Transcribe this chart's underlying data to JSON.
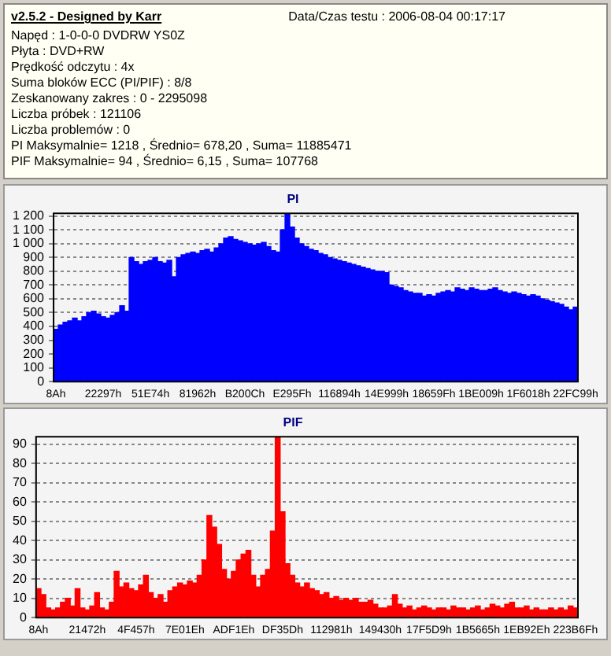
{
  "chart_data": [
    {
      "type": "other",
      "title": "v2.5.2 - Designed by Karr",
      "annotations": [
        "Data/Czas testu : 2006-08-04 00:17:17",
        "Napęd : 1-0-0-0 DVDRW YS0Z",
        "Płyta : DVD+RW",
        "Prędkość odczytu : 4x",
        "Suma bloków ECC (PI/PIF) : 8/8",
        "Zeskanowany zakres : 0 - 2295098",
        "Liczba próbek : 121106",
        "Liczba problemów : 0",
        "PI Maksymalnie= 1218 , Średnio= 678,20 , Suma= 11885471",
        "PIF Maksymalnie= 94 , Średnio= 6,15 , Suma= 107768"
      ]
    },
    {
      "type": "bar",
      "title": "PI",
      "color": "#0000ff",
      "grid": "y",
      "categories": [
        "8Ah",
        null,
        null,
        null,
        null,
        null,
        null,
        null,
        null,
        null,
        "22297h",
        null,
        null,
        null,
        null,
        null,
        null,
        null,
        null,
        null,
        "51E74h",
        null,
        null,
        null,
        null,
        null,
        null,
        null,
        null,
        null,
        "81962h",
        null,
        null,
        null,
        null,
        null,
        null,
        null,
        null,
        null,
        "B200Ch",
        null,
        null,
        null,
        null,
        null,
        null,
        null,
        null,
        null,
        "E295Fh",
        null,
        null,
        null,
        null,
        null,
        null,
        null,
        null,
        null,
        "116894h",
        null,
        null,
        null,
        null,
        null,
        null,
        null,
        null,
        null,
        "14E999h",
        null,
        null,
        null,
        null,
        null,
        null,
        null,
        null,
        null,
        "18659Fh",
        null,
        null,
        null,
        null,
        null,
        null,
        null,
        null,
        null,
        "1BE009h",
        null,
        null,
        null,
        null,
        null,
        null,
        null,
        null,
        null,
        "1F6018h",
        null,
        null,
        null,
        null,
        null,
        null,
        null,
        null,
        null,
        "22FC99h"
      ],
      "values": [
        380,
        410,
        430,
        440,
        460,
        440,
        470,
        500,
        510,
        490,
        470,
        460,
        480,
        500,
        550,
        510,
        900,
        870,
        850,
        870,
        880,
        900,
        870,
        860,
        880,
        760,
        900,
        920,
        930,
        940,
        930,
        950,
        960,
        940,
        970,
        1000,
        1040,
        1050,
        1030,
        1020,
        1010,
        1000,
        990,
        1000,
        1010,
        980,
        950,
        940,
        1100,
        1220,
        1120,
        1040,
        1000,
        980,
        960,
        950,
        930,
        920,
        900,
        890,
        880,
        870,
        860,
        850,
        840,
        830,
        820,
        810,
        800,
        800,
        790,
        700,
        690,
        680,
        660,
        650,
        640,
        640,
        620,
        630,
        620,
        640,
        650,
        660,
        650,
        680,
        670,
        660,
        680,
        670,
        660,
        660,
        670,
        680,
        660,
        650,
        640,
        650,
        640,
        630,
        620,
        630,
        620,
        600,
        590,
        580,
        570,
        560,
        540,
        520,
        540
      ],
      "ylim": [
        0,
        1220
      ],
      "yticks": [
        0,
        100,
        200,
        300,
        400,
        500,
        600,
        700,
        800,
        900,
        {
          "value": 1000,
          "label": "1 000"
        },
        {
          "value": 1100,
          "label": "1 100"
        },
        {
          "value": 1200,
          "label": "1 200"
        }
      ]
    },
    {
      "type": "bar",
      "title": "PIF",
      "color": "#ff0000",
      "grid": "y",
      "categories": [
        "8Ah",
        null,
        null,
        null,
        null,
        null,
        null,
        null,
        null,
        null,
        "21472h",
        null,
        null,
        null,
        null,
        null,
        null,
        null,
        null,
        null,
        "4F457h",
        null,
        null,
        null,
        null,
        null,
        null,
        null,
        null,
        null,
        "7E01Eh",
        null,
        null,
        null,
        null,
        null,
        null,
        null,
        null,
        null,
        "ADF1Eh",
        null,
        null,
        null,
        null,
        null,
        null,
        null,
        null,
        null,
        "DF35Dh",
        null,
        null,
        null,
        null,
        null,
        null,
        null,
        null,
        null,
        "112981h",
        null,
        null,
        null,
        null,
        null,
        null,
        null,
        null,
        null,
        "149430h",
        null,
        null,
        null,
        null,
        null,
        null,
        null,
        null,
        null,
        "17F5D9h",
        null,
        null,
        null,
        null,
        null,
        null,
        null,
        null,
        null,
        "1B5665h",
        null,
        null,
        null,
        null,
        null,
        null,
        null,
        null,
        null,
        "1EB92Eh",
        null,
        null,
        null,
        null,
        null,
        null,
        null,
        null,
        null,
        "223B6Fh"
      ],
      "values": [
        15,
        12,
        5,
        4,
        5,
        8,
        10,
        6,
        15,
        5,
        4,
        6,
        13,
        5,
        4,
        8,
        24,
        16,
        18,
        15,
        14,
        17,
        22,
        13,
        10,
        12,
        8,
        14,
        16,
        18,
        17,
        19,
        18,
        22,
        30,
        53,
        47,
        38,
        25,
        20,
        24,
        30,
        33,
        35,
        22,
        16,
        22,
        25,
        45,
        94,
        55,
        28,
        22,
        18,
        16,
        18,
        15,
        14,
        12,
        13,
        10,
        11,
        9,
        10,
        9,
        10,
        8,
        8,
        9,
        7,
        5,
        5,
        6,
        12,
        7,
        5,
        6,
        4,
        5,
        6,
        5,
        4,
        5,
        5,
        4,
        6,
        5,
        5,
        4,
        5,
        6,
        4,
        5,
        7,
        6,
        5,
        7,
        8,
        5,
        5,
        6,
        4,
        5,
        4,
        4,
        5,
        4,
        5,
        4,
        6,
        5
      ],
      "ylim": [
        0,
        94
      ],
      "yticks": [
        0,
        10,
        20,
        30,
        40,
        50,
        60,
        70,
        80,
        90
      ]
    }
  ]
}
